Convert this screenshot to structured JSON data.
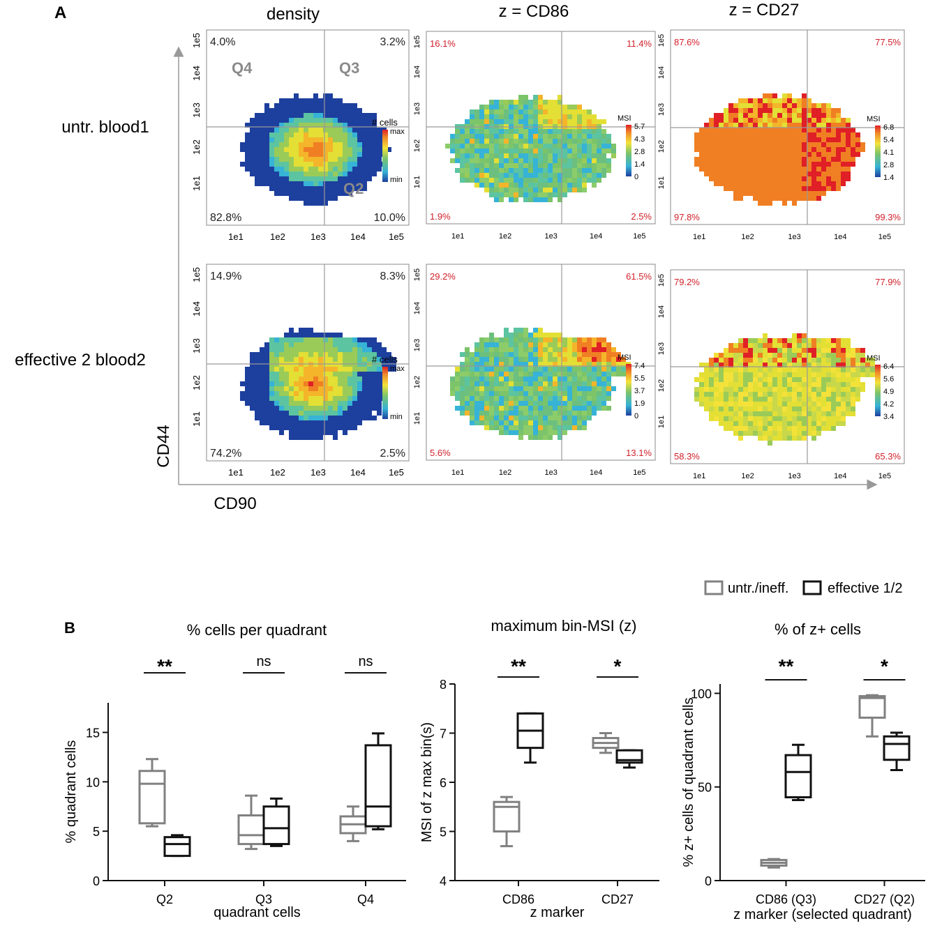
{
  "panels": {
    "a": "A",
    "b": "B"
  },
  "panel_a": {
    "column_titles": [
      "density",
      "z = CD86",
      "z = CD27"
    ],
    "row_labels": [
      "untr. blood1",
      "effective 2 blood2"
    ],
    "x_axis_label": "CD90",
    "y_axis_label": "CD44",
    "ticks": [
      "1e1",
      "1e2",
      "1e3",
      "1e4",
      "1e5"
    ],
    "quadrant_names": [
      "Q4",
      "Q3",
      "Q2"
    ],
    "legend_title_density": "# cells",
    "legend_title_msi": "MSI",
    "density_labels": [
      "max",
      "min"
    ],
    "rows": [
      {
        "density": {
          "q4": "4.0%",
          "q3": "3.2%",
          "q1": "82.8%",
          "q2": "10.0%"
        },
        "cd86": {
          "q4": "16.1%",
          "q3": "11.4%",
          "q1": "1.9%",
          "q2": "2.5%",
          "msi_ticks": [
            "5.7",
            "4.3",
            "2.8",
            "1.4",
            "0"
          ]
        },
        "cd27": {
          "q4": "87.6%",
          "q3": "77.5%",
          "q1": "97.8%",
          "q2": "99.3%",
          "msi_ticks": [
            "6.8",
            "5.4",
            "4.1",
            "2.8",
            "1.4"
          ]
        }
      },
      {
        "density": {
          "q4": "14.9%",
          "q3": "8.3%",
          "q1": "74.2%",
          "q2": "2.5%"
        },
        "cd86": {
          "q4": "29.2%",
          "q3": "61.5%",
          "q1": "5.6%",
          "q2": "13.1%",
          "msi_ticks": [
            "7.4",
            "5.5",
            "3.7",
            "1.9",
            "0"
          ]
        },
        "cd27": {
          "q4": "79.2%",
          "q3": "77.9%",
          "q1": "58.3%",
          "q2": "65.3%",
          "msi_ticks": [
            "6.4",
            "5.6",
            "4.9",
            "4.2",
            "3.4"
          ]
        }
      }
    ]
  },
  "legend": {
    "gray": "untr./ineff.",
    "black": "effective 1/2",
    "gray_color": "#808080",
    "black_color": "#111111"
  },
  "chart_data": [
    {
      "type": "box",
      "title": "% cells per quadrant",
      "xlabel": "quadrant cells",
      "ylabel": "% quadrant cells",
      "ylim": [
        0,
        18
      ],
      "yticks": [
        0,
        5,
        10,
        15
      ],
      "categories": [
        "Q2",
        "Q3",
        "Q4"
      ],
      "significance": [
        "**",
        "ns",
        "ns"
      ],
      "series": [
        {
          "name": "untr./ineff.",
          "boxes": [
            {
              "min": 5.5,
              "q1": 5.8,
              "median": 9.8,
              "q3": 11.1,
              "max": 12.3
            },
            {
              "min": 3.2,
              "q1": 3.7,
              "median": 4.6,
              "q3": 6.6,
              "max": 8.6
            },
            {
              "min": 4.0,
              "q1": 4.8,
              "median": 5.7,
              "q3": 6.5,
              "max": 7.5
            }
          ]
        },
        {
          "name": "effective 1/2",
          "boxes": [
            {
              "min": 2.5,
              "q1": 2.5,
              "median": 3.7,
              "q3": 4.4,
              "max": 4.6
            },
            {
              "min": 3.5,
              "q1": 3.7,
              "median": 5.3,
              "q3": 7.5,
              "max": 8.3
            },
            {
              "min": 5.2,
              "q1": 5.5,
              "median": 7.5,
              "q3": 13.7,
              "max": 14.9
            }
          ]
        }
      ]
    },
    {
      "type": "box",
      "title": "maximum bin-MSI (z)",
      "xlabel": "z marker",
      "ylabel": "MSI of z max bin(s)",
      "ylim": [
        4,
        8
      ],
      "yticks": [
        4,
        5,
        6,
        7,
        8
      ],
      "categories": [
        "CD86",
        "CD27"
      ],
      "significance": [
        "**",
        "*"
      ],
      "series": [
        {
          "name": "untr./ineff.",
          "boxes": [
            {
              "min": 4.7,
              "q1": 5.0,
              "median": 5.5,
              "q3": 5.6,
              "max": 5.7
            },
            {
              "min": 6.6,
              "q1": 6.7,
              "median": 6.8,
              "q3": 6.9,
              "max": 7.0
            }
          ]
        },
        {
          "name": "effective 1/2",
          "boxes": [
            {
              "min": 6.4,
              "q1": 6.7,
              "median": 7.05,
              "q3": 7.4,
              "max": 7.4
            },
            {
              "min": 6.3,
              "q1": 6.4,
              "median": 6.45,
              "q3": 6.65,
              "max": 6.65
            }
          ]
        }
      ]
    },
    {
      "type": "box",
      "title": "% of z+ cells",
      "xlabel": "z marker (selected quadrant)",
      "ylabel": "% z+ cells of quadrant cells",
      "ylim": [
        0,
        105
      ],
      "yticks": [
        0,
        50,
        100
      ],
      "categories": [
        "CD86 (Q3)",
        "CD27 (Q2)"
      ],
      "significance": [
        "**",
        "*"
      ],
      "series": [
        {
          "name": "untr./ineff.",
          "boxes": [
            {
              "min": 7,
              "q1": 8,
              "median": 9.5,
              "q3": 11,
              "max": 11.5
            },
            {
              "min": 77,
              "q1": 87,
              "median": 97.5,
              "q3": 98.5,
              "max": 99
            }
          ]
        },
        {
          "name": "effective 1/2",
          "boxes": [
            {
              "min": 43,
              "q1": 44.5,
              "median": 58,
              "q3": 67,
              "max": 72.5
            },
            {
              "min": 59,
              "q1": 64.5,
              "median": 73,
              "q3": 77,
              "max": 79
            }
          ]
        }
      ]
    }
  ]
}
